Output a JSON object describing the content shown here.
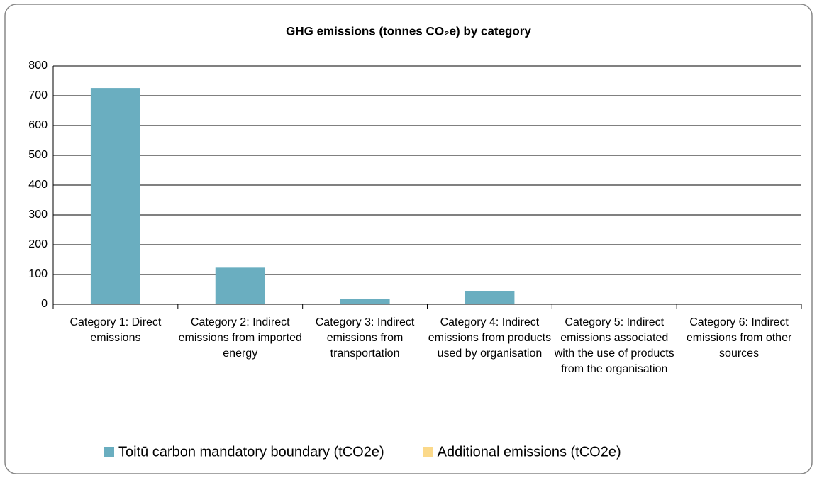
{
  "chart_data": {
    "type": "bar",
    "title": "GHG emissions (tonnes CO₂e) by category",
    "categories": [
      "Category 1: Direct emissions",
      "Category 2: Indirect emissions from imported energy",
      "Category 3: Indirect emissions from transportation",
      "Category 4: Indirect emissions from products used by organisation",
      "Category 5: Indirect emissions associated with the use of products from the organisation",
      "Category 6: Indirect emissions from other sources"
    ],
    "series": [
      {
        "name": "Toitū carbon mandatory boundary (tCO2e)",
        "color": "#6aaec0",
        "values": [
          726,
          123,
          18,
          43,
          0,
          0
        ]
      },
      {
        "name": "Additional emissions (tCO2e)",
        "color": "#fbd98a",
        "values": [
          0,
          0,
          0,
          0,
          0,
          0
        ]
      }
    ],
    "ylim": [
      0,
      800
    ],
    "yticks": [
      0,
      100,
      200,
      300,
      400,
      500,
      600,
      700,
      800
    ],
    "grid": true,
    "legend": "bottom"
  }
}
